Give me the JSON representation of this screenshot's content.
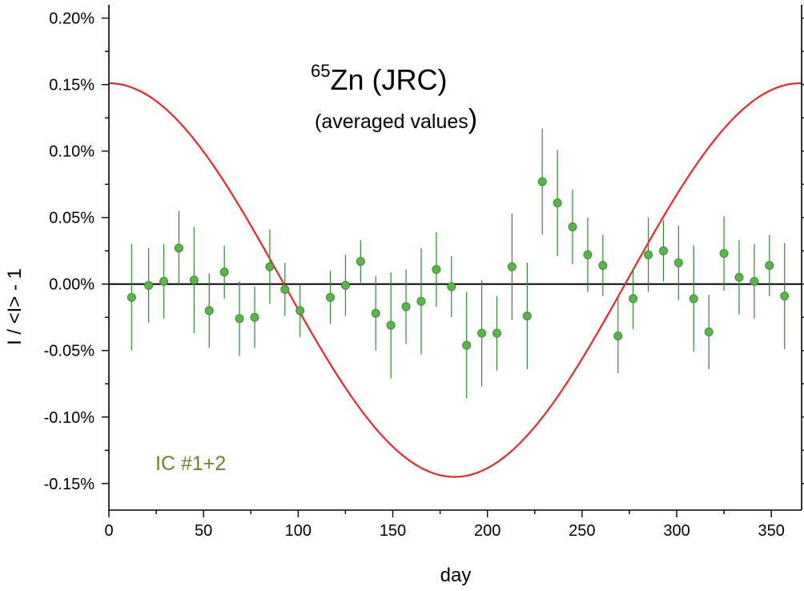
{
  "chart_data": {
    "type": "scatter",
    "title_mass_number": "65",
    "title": "Zn (JRC)",
    "subtitle_text": "(averaged values",
    "subtitle_paren": ")",
    "annotation": "IC #1+2",
    "xlabel": "day",
    "ylabel": "I / <I> - 1",
    "xlim": [
      0,
      366
    ],
    "ylim": [
      -0.0017,
      0.0021
    ],
    "x_ticks": [
      0,
      50,
      100,
      150,
      200,
      250,
      300,
      350
    ],
    "x_tick_labels": [
      "0",
      "50",
      "100",
      "150",
      "200",
      "250",
      "300",
      "350"
    ],
    "y_ticks": [
      -0.0015,
      -0.001,
      -0.0005,
      0,
      0.0005,
      0.001,
      0.0015,
      0.002
    ],
    "y_tick_labels": [
      "-0.15%",
      "-0.10%",
      "-0.05%",
      "0.00%",
      "0.05%",
      "0.10%",
      "0.15%",
      "0.20%"
    ],
    "reference_line_y": 0,
    "colors": {
      "points": "#5ab54a",
      "point_edge": "#3a8a2e",
      "error_bars": "#2e8b2e",
      "model_curve": "#e8262b",
      "annotation": "#7d7a2e",
      "zero_line": "#000000"
    },
    "model_curve": {
      "name": "annual modulation",
      "amplitude": 0.00148,
      "offset": 3e-05,
      "period_days": 365.25,
      "phase_day": 0
    },
    "series": [
      {
        "name": "averaged values",
        "x": [
          12,
          21,
          29,
          37,
          45,
          53,
          61,
          69,
          77,
          85,
          93,
          101,
          117,
          125,
          133,
          141,
          149,
          157,
          165,
          173,
          181,
          189,
          197,
          205,
          213,
          221,
          229,
          237,
          245,
          253,
          261,
          269,
          277,
          285,
          293,
          301,
          309,
          317,
          325,
          333,
          341,
          349,
          357
        ],
        "y": [
          -0.0001,
          -1e-05,
          2e-05,
          0.00027,
          3e-05,
          -0.0002,
          9e-05,
          -0.00026,
          -0.00025,
          0.00013,
          -4e-05,
          -0.0002,
          -0.0001,
          -1e-05,
          0.00017,
          -0.00022,
          -0.00031,
          -0.00017,
          -0.00013,
          0.00011,
          -2e-05,
          -0.00046,
          -0.00037,
          -0.00037,
          0.00013,
          -0.00024,
          0.00077,
          0.00061,
          0.00043,
          0.00022,
          0.00014,
          -0.00039,
          -0.00011,
          0.00022,
          0.00025,
          0.00016,
          -0.00011,
          -0.00036,
          0.00023,
          5e-05,
          2e-05,
          0.00014,
          -9e-05
        ],
        "err": [
          0.0004,
          0.00028,
          0.00028,
          0.00028,
          0.0004,
          0.00028,
          0.0002,
          0.00028,
          0.00023,
          0.00028,
          0.0002,
          0.0002,
          0.0002,
          0.00023,
          0.00016,
          0.00028,
          0.0004,
          0.00028,
          0.0004,
          0.00028,
          0.00023,
          0.0004,
          0.0004,
          0.00028,
          0.0004,
          0.0004,
          0.0004,
          0.0004,
          0.00028,
          0.00028,
          0.00023,
          0.00028,
          0.00023,
          0.00028,
          0.00023,
          0.00028,
          0.0004,
          0.00028,
          0.00028,
          0.00028,
          0.00028,
          0.00023,
          0.0004
        ]
      }
    ]
  }
}
